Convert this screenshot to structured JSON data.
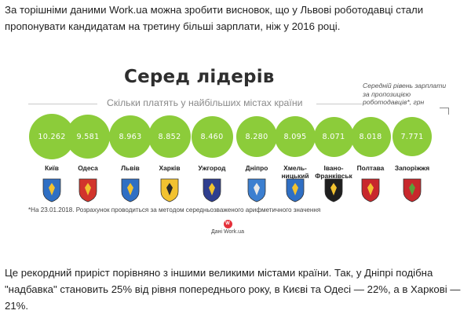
{
  "article": {
    "intro": "За торішніми даними Work.ua можна зробити висновок, що у Львові роботодавці стали пропонувати кандидатам на третину більші зарплати, ніж у 2016 році.",
    "outro": "Це рекордний приріст порівняно з іншими великими містами країни. Так, у Дніпрі подібна \"надбавка\" становить 25% від рівня попереднього року, в Києві та Одесі — 22%, а в Харкові — 21%."
  },
  "infographic": {
    "title": "Серед лідерів",
    "subtitle": "Скільки платять у найбільших містах країни",
    "note": "Середній рівень зарплати за пропозицією роботодавців*, грн",
    "footnote": "*На 23.01.2018. Розрахунок проводиться за методом середньозваженого арифметичного значення",
    "source_logo": "W",
    "source_text": "Дані Work.ua",
    "bubble_color": "#8ccc3a"
  },
  "chart_data": {
    "type": "bubble",
    "title": "Серед лідерів",
    "subtitle": "Скільки платять у найбільших містах країни",
    "unit": "грн",
    "categories": [
      "Київ",
      "Одеса",
      "Львів",
      "Харків",
      "Ужгород",
      "Дніпро",
      "Хмель-ницький",
      "Івано-Франківськ",
      "Полтава",
      "Запоріжжя"
    ],
    "values_display": [
      "10.262",
      "9.581",
      "8.963",
      "8.852",
      "8.460",
      "8.280",
      "8.095",
      "8.071",
      "8.018",
      "7.771"
    ],
    "values": [
      10262,
      9581,
      8963,
      8852,
      8460,
      8280,
      8095,
      8071,
      8018,
      7771
    ]
  },
  "cities": [
    {
      "label": "Київ",
      "crest": "kyiv-crest-icon"
    },
    {
      "label": "Одеса",
      "crest": "odesa-crest-icon"
    },
    {
      "label": "Львів",
      "crest": "lviv-crest-icon"
    },
    {
      "label": "Харків",
      "crest": "kharkiv-crest-icon"
    },
    {
      "label": "Ужгород",
      "crest": "uzhhorod-crest-icon"
    },
    {
      "label": "Дніпро",
      "crest": "dnipro-crest-icon"
    },
    {
      "label": "Хмель-\nницький",
      "crest": "khmelnytskyi-crest-icon"
    },
    {
      "label": "Івано-\nФранківськ",
      "crest": "ivano-frankivsk-crest-icon"
    },
    {
      "label": "Полтава",
      "crest": "poltava-crest-icon"
    },
    {
      "label": "Запоріжжя",
      "crest": "zaporizhzhia-crest-icon"
    }
  ]
}
